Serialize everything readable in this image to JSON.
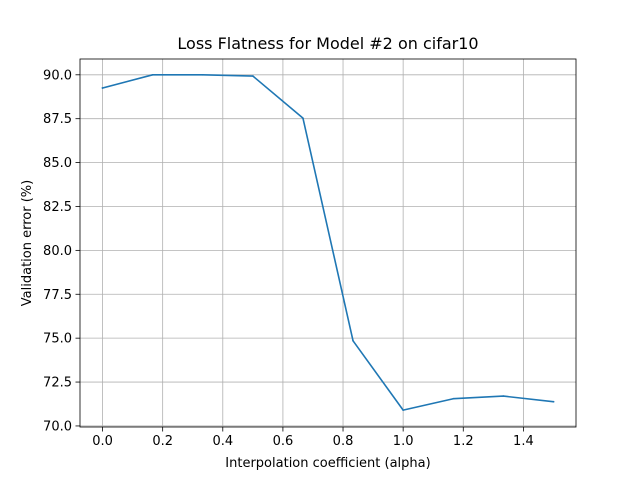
{
  "chart_data": {
    "type": "line",
    "title": "Loss Flatness for Model #2 on cifar10",
    "xlabel": "Interpolation coefficient (alpha)",
    "ylabel": "Validation error (%)",
    "xlim": [
      -0.075,
      1.575
    ],
    "ylim": [
      69.94,
      90.9
    ],
    "x_ticks": [
      0.0,
      0.2,
      0.4,
      0.6,
      0.8,
      1.0,
      1.2,
      1.4
    ],
    "x_tick_labels": [
      "0.0",
      "0.2",
      "0.4",
      "0.6",
      "0.8",
      "1.0",
      "1.2",
      "1.4"
    ],
    "y_ticks": [
      70.0,
      72.5,
      75.0,
      77.5,
      80.0,
      82.5,
      85.0,
      87.5,
      90.0
    ],
    "y_tick_labels": [
      "70.0",
      "72.5",
      "75.0",
      "77.5",
      "80.0",
      "82.5",
      "85.0",
      "87.5",
      "90.0"
    ],
    "grid": true,
    "series": [
      {
        "color": "#1f77b4",
        "x": [
          0.0,
          0.1667,
          0.3333,
          0.5,
          0.6667,
          0.8333,
          1.0,
          1.1667,
          1.3333,
          1.5
        ],
        "y": [
          89.25,
          90.0,
          90.0,
          89.93,
          87.53,
          74.85,
          70.9,
          71.55,
          71.7,
          71.38
        ]
      }
    ]
  }
}
